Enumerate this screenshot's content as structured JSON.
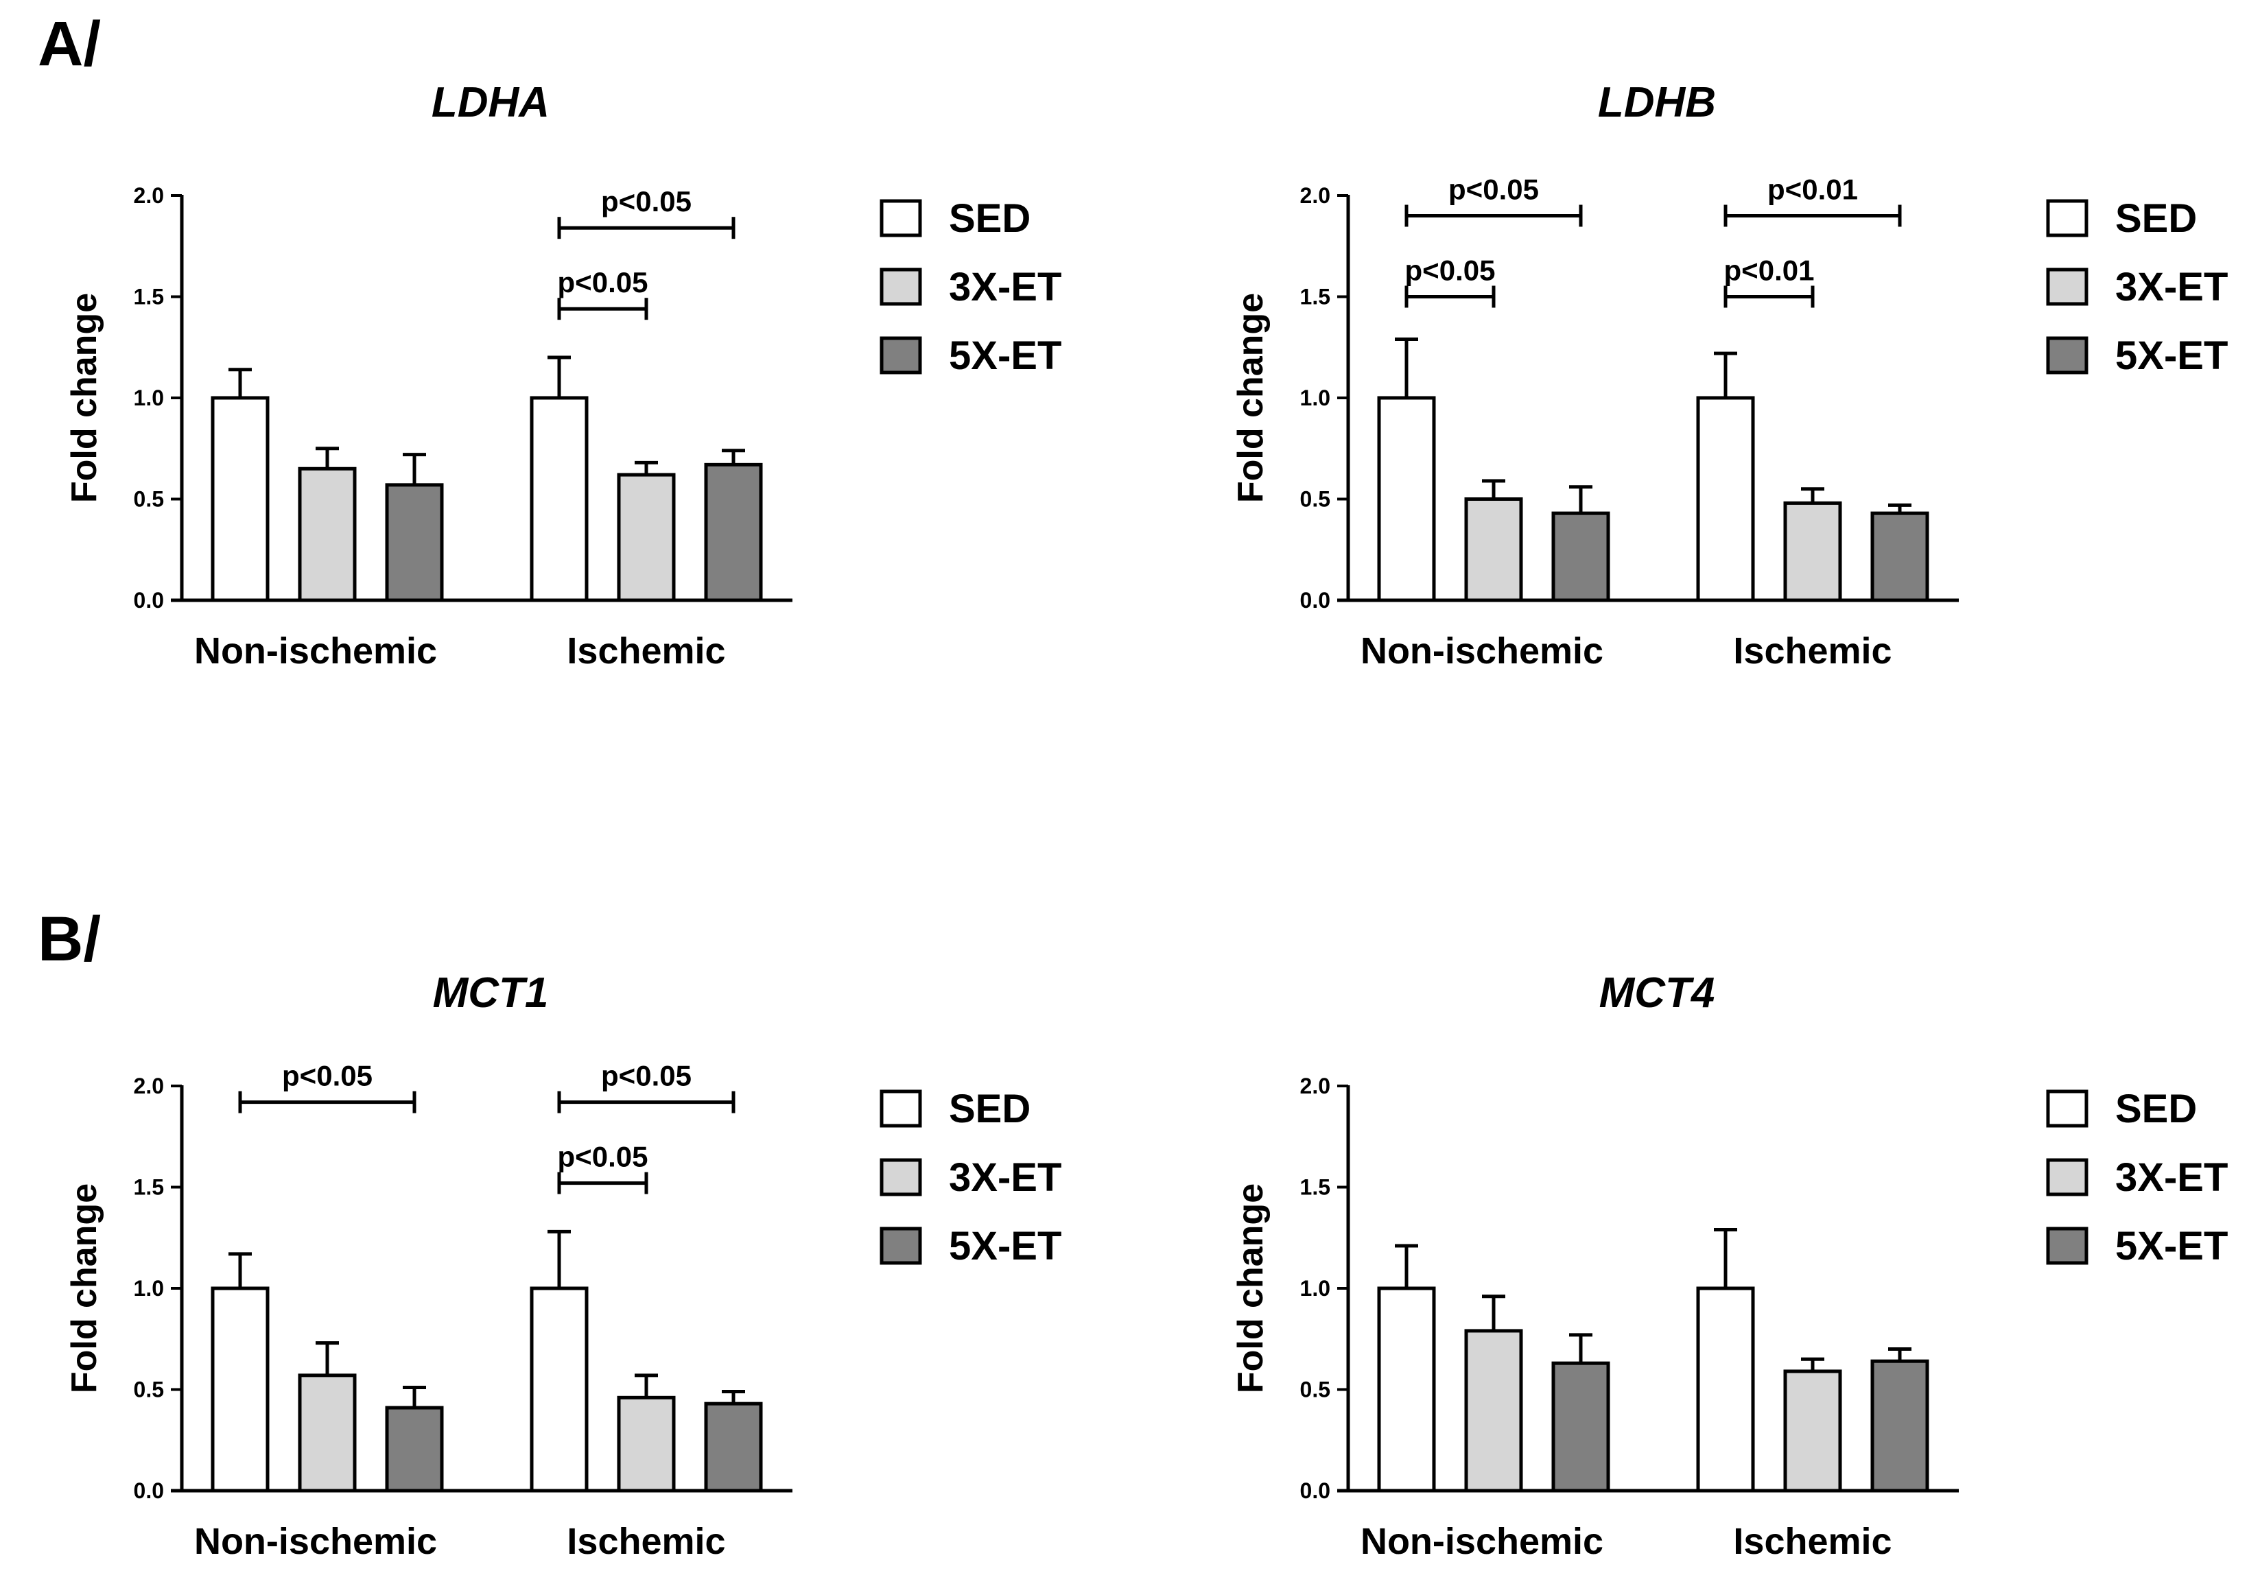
{
  "panels": [
    {
      "label": "A/",
      "row": 0
    },
    {
      "label": "B/",
      "row": 1
    }
  ],
  "chart_data": [
    {
      "type": "bar",
      "title": "LDHA",
      "ylabel": "Fold change",
      "xlabel": "",
      "ylim": [
        0,
        2.0
      ],
      "yticks": [
        "0.0",
        "0.5",
        "1.0",
        "1.5",
        "2.0"
      ],
      "categories": [
        "Non-ischemic",
        "Ischemic"
      ],
      "series": [
        {
          "name": "SED",
          "color": "#ffffff",
          "values": [
            1.0,
            1.0
          ],
          "errors": [
            0.14,
            0.2
          ]
        },
        {
          "name": "3X-ET",
          "color": "#d6d6d6",
          "values": [
            0.65,
            0.62
          ],
          "errors": [
            0.1,
            0.06
          ]
        },
        {
          "name": "5X-ET",
          "color": "#808080",
          "values": [
            0.57,
            0.67
          ],
          "errors": [
            0.15,
            0.07
          ]
        }
      ],
      "significance": [
        {
          "category": 1,
          "from": 0,
          "to": 1,
          "label": "p<0.05",
          "y": 1.44
        },
        {
          "category": 1,
          "from": 0,
          "to": 2,
          "label": "p<0.05",
          "y": 1.84
        }
      ]
    },
    {
      "type": "bar",
      "title": "LDHB",
      "ylabel": "Fold change",
      "xlabel": "",
      "ylim": [
        0,
        2.0
      ],
      "yticks": [
        "0.0",
        "0.5",
        "1.0",
        "1.5",
        "2.0"
      ],
      "categories": [
        "Non-ischemic",
        "Ischemic"
      ],
      "series": [
        {
          "name": "SED",
          "color": "#ffffff",
          "values": [
            1.0,
            1.0
          ],
          "errors": [
            0.29,
            0.22
          ]
        },
        {
          "name": "3X-ET",
          "color": "#d6d6d6",
          "values": [
            0.5,
            0.48
          ],
          "errors": [
            0.09,
            0.07
          ]
        },
        {
          "name": "5X-ET",
          "color": "#808080",
          "values": [
            0.43,
            0.43
          ],
          "errors": [
            0.13,
            0.04
          ]
        }
      ],
      "significance": [
        {
          "category": 0,
          "from": 0,
          "to": 1,
          "label": "p<0.05",
          "y": 1.5
        },
        {
          "category": 0,
          "from": 0,
          "to": 2,
          "label": "p<0.05",
          "y": 1.9
        },
        {
          "category": 1,
          "from": 0,
          "to": 1,
          "label": "p<0.01",
          "y": 1.5
        },
        {
          "category": 1,
          "from": 0,
          "to": 2,
          "label": "p<0.01",
          "y": 1.9
        }
      ]
    },
    {
      "type": "bar",
      "title": "MCT1",
      "ylabel": "Fold change",
      "xlabel": "",
      "ylim": [
        0,
        2.0
      ],
      "yticks": [
        "0.0",
        "0.5",
        "1.0",
        "1.5",
        "2.0"
      ],
      "categories": [
        "Non-ischemic",
        "Ischemic"
      ],
      "series": [
        {
          "name": "SED",
          "color": "#ffffff",
          "values": [
            1.0,
            1.0
          ],
          "errors": [
            0.17,
            0.28
          ]
        },
        {
          "name": "3X-ET",
          "color": "#d6d6d6",
          "values": [
            0.57,
            0.46
          ],
          "errors": [
            0.16,
            0.11
          ]
        },
        {
          "name": "5X-ET",
          "color": "#808080",
          "values": [
            0.41,
            0.43
          ],
          "errors": [
            0.1,
            0.06
          ]
        }
      ],
      "significance": [
        {
          "category": 0,
          "from": 0,
          "to": 2,
          "label": "p<0.05",
          "y": 1.92
        },
        {
          "category": 1,
          "from": 0,
          "to": 1,
          "label": "p<0.05",
          "y": 1.52
        },
        {
          "category": 1,
          "from": 0,
          "to": 2,
          "label": "p<0.05",
          "y": 1.92
        }
      ]
    },
    {
      "type": "bar",
      "title": "MCT4",
      "ylabel": "Fold change",
      "xlabel": "",
      "ylim": [
        0,
        2.0
      ],
      "yticks": [
        "0.0",
        "0.5",
        "1.0",
        "1.5",
        "2.0"
      ],
      "categories": [
        "Non-ischemic",
        "Ischemic"
      ],
      "series": [
        {
          "name": "SED",
          "color": "#ffffff",
          "values": [
            1.0,
            1.0
          ],
          "errors": [
            0.21,
            0.29
          ]
        },
        {
          "name": "3X-ET",
          "color": "#d6d6d6",
          "values": [
            0.79,
            0.59
          ],
          "errors": [
            0.17,
            0.06
          ]
        },
        {
          "name": "5X-ET",
          "color": "#808080",
          "values": [
            0.63,
            0.64
          ],
          "errors": [
            0.14,
            0.06
          ]
        }
      ],
      "significance": []
    }
  ]
}
